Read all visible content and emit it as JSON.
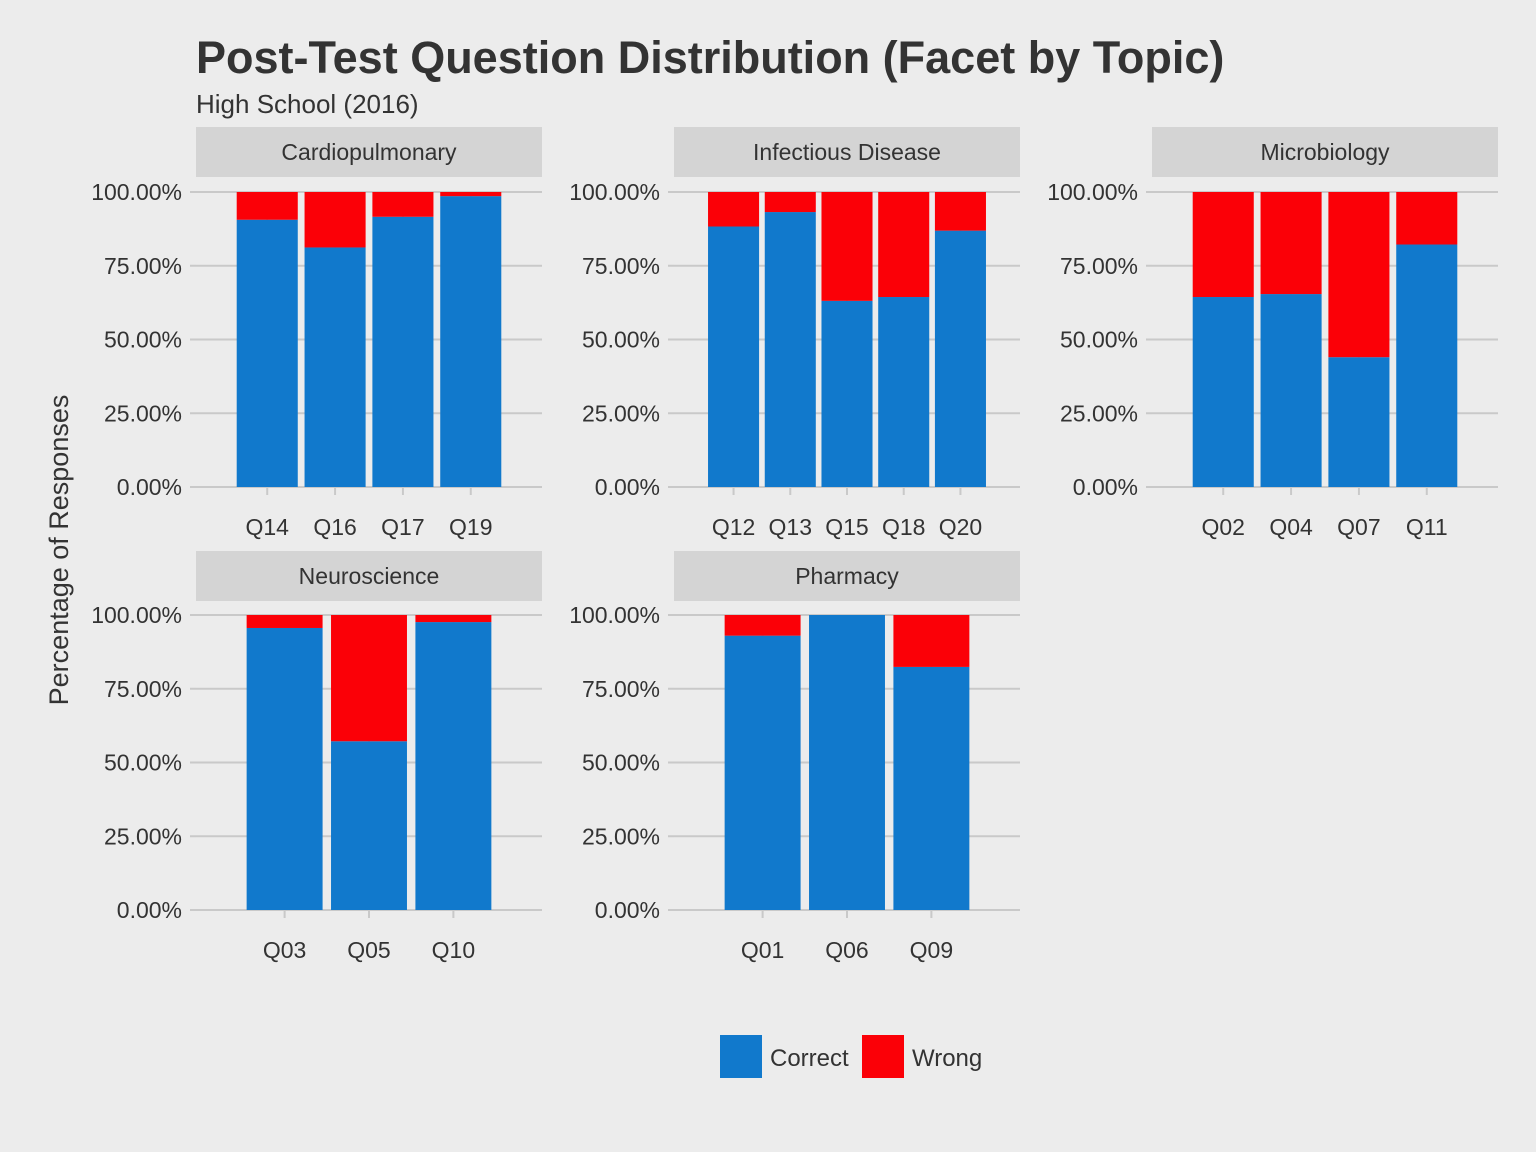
{
  "chart_data": {
    "type": "bar",
    "stacked": true,
    "title": "Post-Test Question Distribution (Facet by Topic)",
    "subtitle": "High School (2016)",
    "xlabel": "",
    "ylabel": "Percentage of Responses",
    "ylim": [
      0,
      100
    ],
    "y_ticks": [
      "0.00%",
      "25.00%",
      "50.00%",
      "75.00%",
      "100.00%"
    ],
    "y_tick_values": [
      0,
      25,
      50,
      75,
      100
    ],
    "grid": true,
    "legend_position": "bottom",
    "legend": [
      {
        "name": "Correct",
        "color": "#1179cc"
      },
      {
        "name": "Wrong",
        "color": "#fb0007"
      }
    ],
    "facets": [
      {
        "topic": "Cardiopulmonary",
        "categories": [
          "Q14",
          "Q16",
          "Q17",
          "Q19"
        ],
        "series": [
          {
            "name": "Correct",
            "values": [
              90.6,
              81.2,
              91.6,
              98.6
            ]
          },
          {
            "name": "Wrong",
            "values": [
              9.4,
              18.8,
              8.4,
              1.4
            ]
          }
        ]
      },
      {
        "topic": "Infectious Disease",
        "categories": [
          "Q12",
          "Q13",
          "Q15",
          "Q18",
          "Q20"
        ],
        "series": [
          {
            "name": "Correct",
            "values": [
              88.3,
              93.2,
              63.1,
              64.4,
              86.9
            ]
          },
          {
            "name": "Wrong",
            "values": [
              11.7,
              6.8,
              36.9,
              35.6,
              13.1
            ]
          }
        ]
      },
      {
        "topic": "Microbiology",
        "categories": [
          "Q02",
          "Q04",
          "Q07",
          "Q11"
        ],
        "series": [
          {
            "name": "Correct",
            "values": [
              64.4,
              65.4,
              44.0,
              82.2
            ]
          },
          {
            "name": "Wrong",
            "values": [
              35.6,
              34.6,
              56.0,
              17.8
            ]
          }
        ]
      },
      {
        "topic": "Neuroscience",
        "categories": [
          "Q03",
          "Q05",
          "Q10"
        ],
        "series": [
          {
            "name": "Correct",
            "values": [
              95.6,
              57.2,
              97.6
            ]
          },
          {
            "name": "Wrong",
            "values": [
              4.4,
              42.8,
              2.4
            ]
          }
        ]
      },
      {
        "topic": "Pharmacy",
        "categories": [
          "Q01",
          "Q06",
          "Q09"
        ],
        "series": [
          {
            "name": "Correct",
            "values": [
              93.0,
              100.0,
              82.4
            ]
          },
          {
            "name": "Wrong",
            "values": [
              7.0,
              0.0,
              17.6
            ]
          }
        ]
      }
    ]
  }
}
